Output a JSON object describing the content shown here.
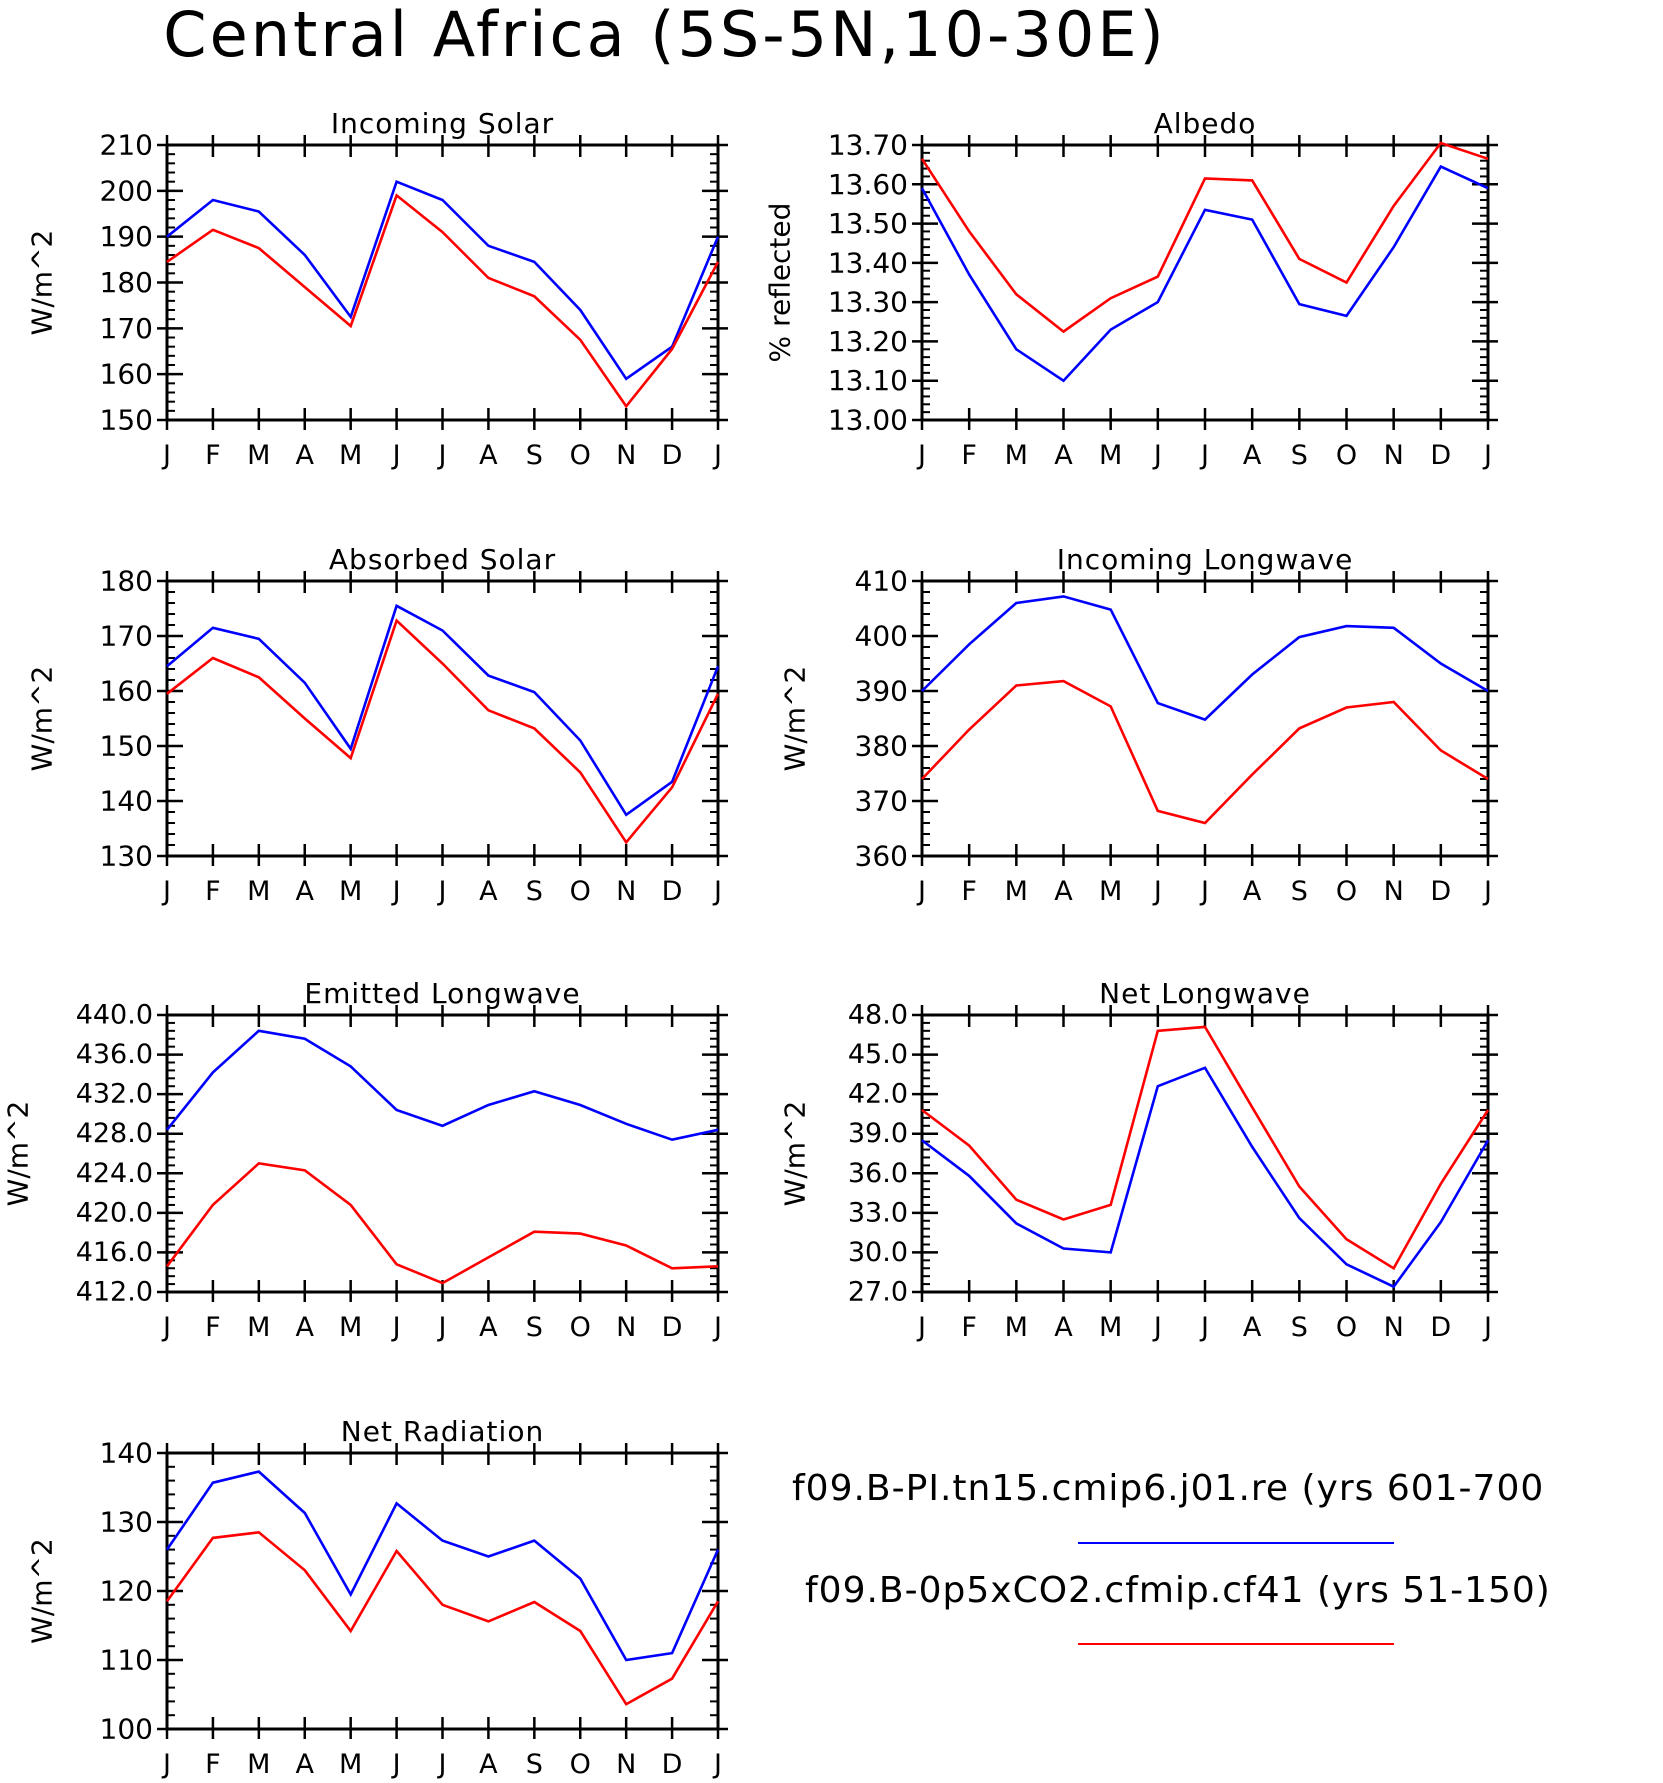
{
  "title": "Central Africa (5S-5N,10-30E)",
  "months": [
    "J",
    "F",
    "M",
    "A",
    "M",
    "J",
    "J",
    "A",
    "S",
    "O",
    "N",
    "D",
    "J"
  ],
  "legend": [
    {
      "label": "f09.B-PI.tn15.cmip6.j01.re (yrs 601-700",
      "color": "#0000ff"
    },
    {
      "label": "f09.B-0p5xCO2.cfmip.cf41 (yrs 51-150)",
      "color": "#ff0000"
    }
  ],
  "chart_data": [
    {
      "type": "line",
      "title": "Incoming Solar",
      "ylabel": "W/m^2",
      "ylim": [
        150,
        210
      ],
      "yticks": [
        150,
        160,
        170,
        180,
        190,
        200,
        210
      ],
      "ytick_labels": [
        "150",
        "160",
        "170",
        "180",
        "190",
        "200",
        "210"
      ],
      "y_minor_step": 2,
      "x": [
        "J",
        "F",
        "M",
        "A",
        "M",
        "J",
        "J",
        "A",
        "S",
        "O",
        "N",
        "D",
        "J"
      ],
      "series": [
        {
          "color": "#0000ff",
          "values": [
            190,
            198,
            195.5,
            186,
            172.5,
            202,
            198,
            188,
            184.5,
            174,
            159,
            166,
            190
          ]
        },
        {
          "color": "#ff0000",
          "values": [
            184.5,
            191.5,
            187.5,
            179,
            170.5,
            199,
            191,
            181,
            177,
            167.5,
            153,
            165.5,
            184.5
          ]
        }
      ]
    },
    {
      "type": "line",
      "title": "Albedo",
      "ylabel": "% reflected",
      "ylim": [
        13.0,
        13.7
      ],
      "yticks": [
        13.0,
        13.1,
        13.2,
        13.3,
        13.4,
        13.5,
        13.6,
        13.7
      ],
      "ytick_labels": [
        "13.00",
        "13.10",
        "13.20",
        "13.30",
        "13.40",
        "13.50",
        "13.60",
        "13.70"
      ],
      "y_minor_step": 0.02,
      "x": [
        "J",
        "F",
        "M",
        "A",
        "M",
        "J",
        "J",
        "A",
        "S",
        "O",
        "N",
        "D",
        "J"
      ],
      "series": [
        {
          "color": "#0000ff",
          "values": [
            13.59,
            13.37,
            13.18,
            13.1,
            13.23,
            13.3,
            13.535,
            13.51,
            13.295,
            13.265,
            13.44,
            13.645,
            13.59
          ]
        },
        {
          "color": "#ff0000",
          "values": [
            13.665,
            13.48,
            13.32,
            13.225,
            13.31,
            13.365,
            13.615,
            13.61,
            13.41,
            13.35,
            13.545,
            13.705,
            13.665
          ]
        }
      ]
    },
    {
      "type": "line",
      "title": "Absorbed Solar",
      "ylabel": "W/m^2",
      "ylim": [
        130,
        180
      ],
      "yticks": [
        130,
        140,
        150,
        160,
        170,
        180
      ],
      "ytick_labels": [
        "130",
        "140",
        "150",
        "160",
        "170",
        "180"
      ],
      "y_minor_step": 2,
      "x": [
        "J",
        "F",
        "M",
        "A",
        "M",
        "J",
        "J",
        "A",
        "S",
        "O",
        "N",
        "D",
        "J"
      ],
      "series": [
        {
          "color": "#0000ff",
          "values": [
            164.5,
            171.5,
            169.5,
            161.5,
            149.5,
            175.5,
            171,
            162.8,
            159.8,
            151,
            137.5,
            143.5,
            164.5
          ]
        },
        {
          "color": "#ff0000",
          "values": [
            159.5,
            166,
            162.5,
            155,
            147.8,
            172.8,
            165,
            156.5,
            153.2,
            145.2,
            132.5,
            142.5,
            159.5
          ]
        }
      ]
    },
    {
      "type": "line",
      "title": "Incoming Longwave",
      "ylabel": "W/m^2",
      "ylim": [
        360,
        410
      ],
      "yticks": [
        360,
        370,
        380,
        390,
        400,
        410
      ],
      "ytick_labels": [
        "360",
        "370",
        "380",
        "390",
        "400",
        "410"
      ],
      "y_minor_step": 2,
      "x": [
        "J",
        "F",
        "M",
        "A",
        "M",
        "J",
        "J",
        "A",
        "S",
        "O",
        "N",
        "D",
        "J"
      ],
      "series": [
        {
          "color": "#0000ff",
          "values": [
            390,
            398.5,
            406,
            407.2,
            404.8,
            387.8,
            384.8,
            393,
            399.8,
            401.8,
            401.5,
            395,
            390
          ]
        },
        {
          "color": "#ff0000",
          "values": [
            374,
            383,
            391,
            391.8,
            387.2,
            368.2,
            366,
            374.8,
            383.2,
            387,
            388,
            379.2,
            374
          ]
        }
      ]
    },
    {
      "type": "line",
      "title": "Emitted Longwave",
      "ylabel": "W/m^2",
      "ylim": [
        412,
        440
      ],
      "yticks": [
        412,
        416,
        420,
        424,
        428,
        432,
        436,
        440
      ],
      "ytick_labels": [
        "412.0",
        "416.0",
        "420.0",
        "424.0",
        "428.0",
        "432.0",
        "436.0",
        "440.0"
      ],
      "y_minor_step": 0.8,
      "x": [
        "J",
        "F",
        "M",
        "A",
        "M",
        "J",
        "J",
        "A",
        "S",
        "O",
        "N",
        "D",
        "J"
      ],
      "series": [
        {
          "color": "#0000ff",
          "values": [
            428.4,
            434.2,
            438.4,
            437.6,
            434.8,
            430.4,
            428.8,
            430.9,
            432.3,
            430.9,
            429,
            427.4,
            428.4
          ]
        },
        {
          "color": "#ff0000",
          "values": [
            414.6,
            420.8,
            425,
            424.3,
            420.8,
            414.8,
            412.9,
            415.5,
            418.1,
            417.9,
            416.7,
            414.4,
            414.6
          ]
        }
      ]
    },
    {
      "type": "line",
      "title": "Net Longwave",
      "ylabel": "W/m^2",
      "ylim": [
        27,
        48
      ],
      "yticks": [
        27,
        30,
        33,
        36,
        39,
        42,
        45,
        48
      ],
      "ytick_labels": [
        "27.0",
        "30.0",
        "33.0",
        "36.0",
        "39.0",
        "42.0",
        "45.0",
        "48.0"
      ],
      "y_minor_step": 0.6,
      "x": [
        "J",
        "F",
        "M",
        "A",
        "M",
        "J",
        "J",
        "A",
        "S",
        "O",
        "N",
        "D",
        "J"
      ],
      "series": [
        {
          "color": "#0000ff",
          "values": [
            38.5,
            35.8,
            32.2,
            30.3,
            30,
            42.6,
            44,
            38,
            32.6,
            29.1,
            27.4,
            32.3,
            38.5
          ]
        },
        {
          "color": "#ff0000",
          "values": [
            40.8,
            38.1,
            34,
            32.5,
            33.6,
            46.8,
            47.1,
            41,
            35,
            31,
            28.8,
            35.2,
            40.8
          ]
        }
      ]
    },
    {
      "type": "line",
      "title": "Net Radiation",
      "ylabel": "W/m^2",
      "ylim": [
        100,
        140
      ],
      "yticks": [
        100,
        110,
        120,
        130,
        140
      ],
      "ytick_labels": [
        "100",
        "110",
        "120",
        "130",
        "140"
      ],
      "y_minor_step": 2,
      "x": [
        "J",
        "F",
        "M",
        "A",
        "M",
        "J",
        "J",
        "A",
        "S",
        "O",
        "N",
        "D",
        "J"
      ],
      "series": [
        {
          "color": "#0000ff",
          "values": [
            126,
            135.7,
            137.3,
            131.3,
            119.5,
            132.7,
            127.3,
            125,
            127.3,
            121.8,
            110,
            111,
            126
          ]
        },
        {
          "color": "#ff0000",
          "values": [
            118.5,
            127.7,
            128.5,
            123,
            114.2,
            125.8,
            118,
            115.6,
            118.4,
            114.2,
            103.6,
            107.3,
            118.5
          ]
        }
      ]
    }
  ]
}
